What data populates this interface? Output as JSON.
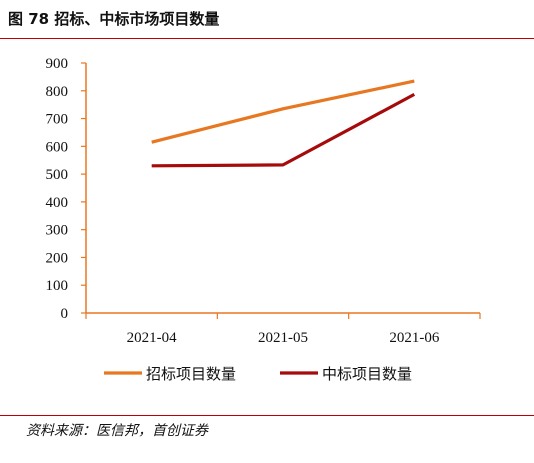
{
  "figure": {
    "title": "图 78 招标、中标市场项目数量",
    "source": "资料来源：医信邦，首创证券"
  },
  "colors": {
    "accent_rule": "#c00000",
    "axis": "#e87722"
  },
  "chart_data": {
    "type": "line",
    "title": "",
    "xlabel": "",
    "ylabel": "",
    "categories": [
      "2021-04",
      "2021-05",
      "2021-06"
    ],
    "ylim": [
      0,
      900
    ],
    "yticks": [
      0,
      100,
      200,
      300,
      400,
      500,
      600,
      700,
      800,
      900
    ],
    "grid": false,
    "legend_position": "bottom",
    "series": [
      {
        "name": "招标项目数量",
        "values": [
          615,
          735,
          835
        ],
        "color": "#e87722"
      },
      {
        "name": "中标项目数量",
        "values": [
          530,
          533,
          787
        ],
        "color": "#a50b0b"
      }
    ]
  }
}
